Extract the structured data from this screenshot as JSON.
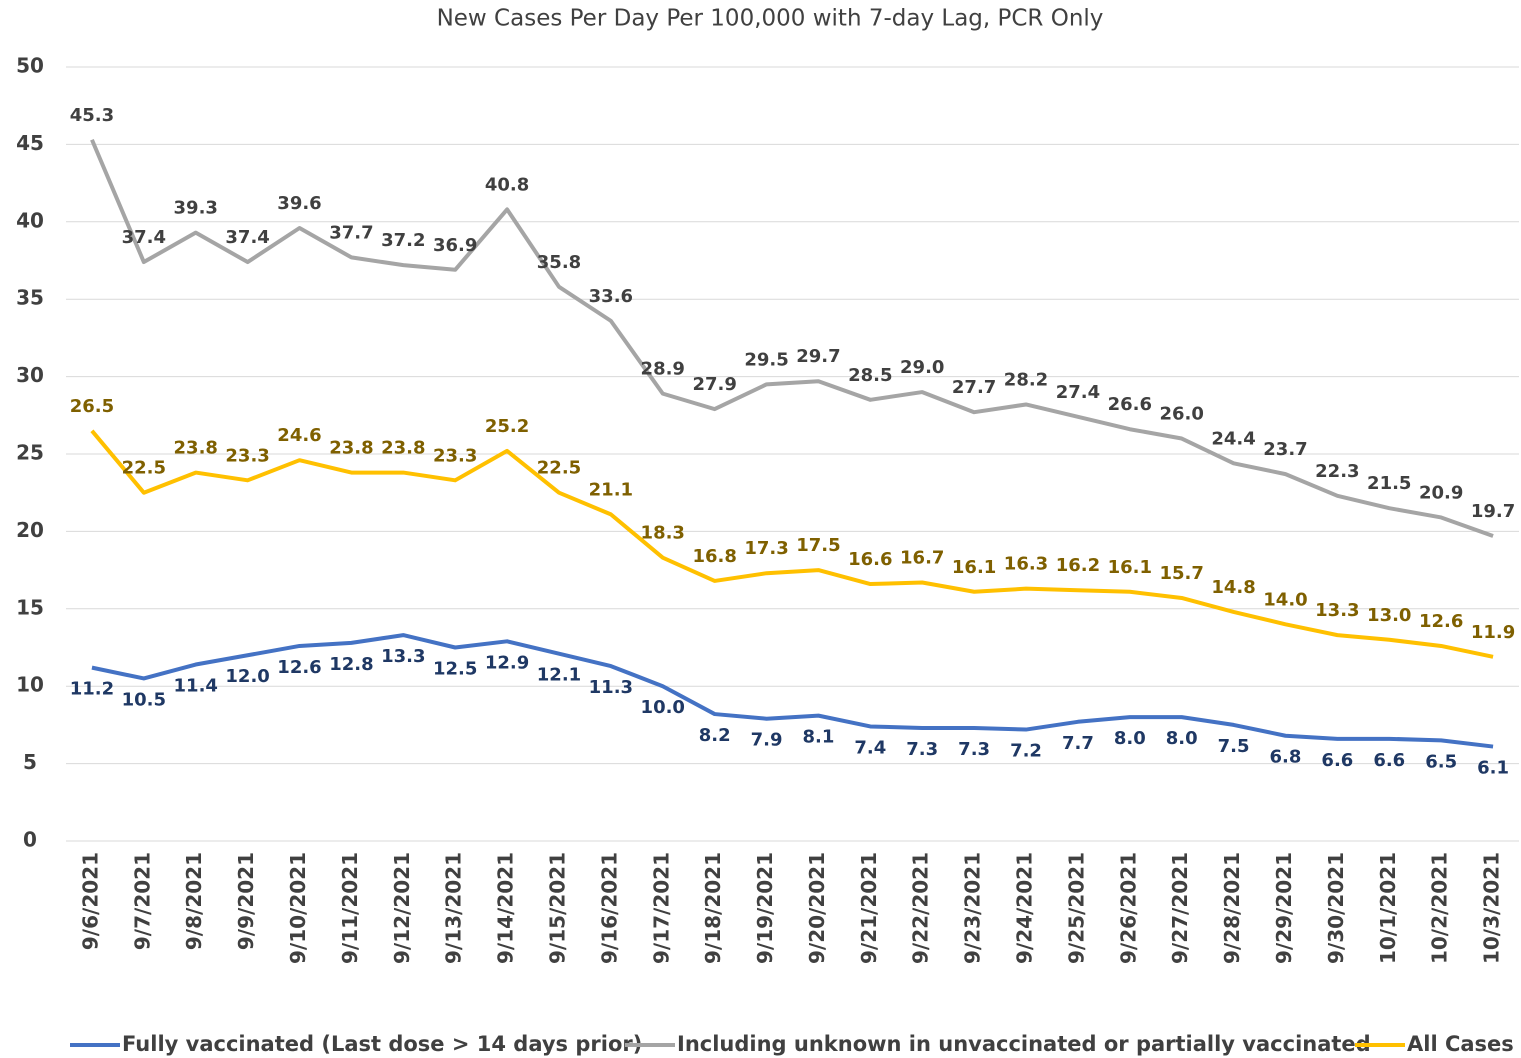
{
  "chart_data": {
    "type": "line",
    "title": "New Cases Per Day Per 100,000 with 7-day Lag, PCR Only",
    "categories": [
      "9/6/2021",
      "9/7/2021",
      "9/8/2021",
      "9/9/2021",
      "9/10/2021",
      "9/11/2021",
      "9/12/2021",
      "9/13/2021",
      "9/14/2021",
      "9/15/2021",
      "9/16/2021",
      "9/17/2021",
      "9/18/2021",
      "9/19/2021",
      "9/20/2021",
      "9/21/2021",
      "9/22/2021",
      "9/23/2021",
      "9/24/2021",
      "9/25/2021",
      "9/26/2021",
      "9/27/2021",
      "9/28/2021",
      "9/29/2021",
      "9/30/2021",
      "10/1/2021",
      "10/2/2021",
      "10/3/2021"
    ],
    "series": [
      {
        "name": "Fully vaccinated (Last dose > 14 days prior)",
        "color": "#4472c4",
        "values": [
          11.2,
          10.5,
          11.4,
          12.0,
          12.6,
          12.8,
          13.3,
          12.5,
          12.9,
          12.1,
          11.3,
          10.0,
          8.2,
          7.9,
          8.1,
          7.4,
          7.3,
          7.3,
          7.2,
          7.7,
          8.0,
          8.0,
          7.5,
          6.8,
          6.6,
          6.6,
          6.5,
          6.1
        ],
        "value_labels": [
          "11.2",
          "10.5",
          "11.4",
          "12.0",
          "12.6",
          "12.8",
          "13.3",
          "12.5",
          "12.9",
          "12.1",
          "11.3",
          "10.0",
          "8.2",
          "7.9",
          "8.1",
          "7.4",
          "7.3",
          "7.3",
          "7.2",
          "7.7",
          "8.0",
          "8.0",
          "7.5",
          "6.8",
          "6.6",
          "6.6",
          "6.5",
          "6.1"
        ]
      },
      {
        "name": "Including unknown in unvaccinated or partially vaccinated",
        "color": "#a5a5a5",
        "values": [
          45.3,
          37.4,
          39.3,
          37.4,
          39.6,
          37.7,
          37.2,
          36.9,
          40.8,
          35.8,
          33.6,
          28.9,
          27.9,
          29.5,
          29.7,
          28.5,
          29.0,
          27.7,
          28.2,
          27.4,
          26.6,
          26.0,
          24.4,
          23.7,
          22.3,
          21.5,
          20.9,
          19.7
        ],
        "value_labels": [
          "45.3",
          "37.4",
          "39.3",
          "37.4",
          "39.6",
          "37.7",
          "37.2",
          "36.9",
          "40.8",
          "35.8",
          "33.6",
          "28.9",
          "27.9",
          "29.5",
          "29.7",
          "28.5",
          "29.0",
          "27.7",
          "28.2",
          "27.4",
          "26.6",
          "26.0",
          "24.4",
          "23.7",
          "22.3",
          "21.5",
          "20.9",
          "19.7"
        ]
      },
      {
        "name": "All Cases",
        "color": "#ffc000",
        "values": [
          26.5,
          22.5,
          23.8,
          23.3,
          24.6,
          23.8,
          23.8,
          23.3,
          25.2,
          22.5,
          21.1,
          18.3,
          16.8,
          17.3,
          17.5,
          16.6,
          16.7,
          16.1,
          16.3,
          16.2,
          16.1,
          15.7,
          14.8,
          14.0,
          13.3,
          13.0,
          12.6,
          11.9
        ],
        "value_labels": [
          "26.5",
          "22.5",
          "23.8",
          "23.3",
          "24.6",
          "23.8",
          "23.8",
          "23.3",
          "25.2",
          "22.5",
          "21.1",
          "18.3",
          "16.8",
          "17.3",
          "17.5",
          "16.6",
          "16.7",
          "16.1",
          "16.3",
          "16.2",
          "16.1",
          "15.7",
          "14.8",
          "14.0",
          "13.3",
          "13.0",
          "12.6",
          "11.9"
        ]
      }
    ],
    "ylim": [
      0,
      50
    ],
    "yticks": [
      0,
      5,
      10,
      15,
      20,
      25,
      30,
      35,
      40,
      45,
      50
    ],
    "grid": true,
    "legend": "bottom"
  }
}
